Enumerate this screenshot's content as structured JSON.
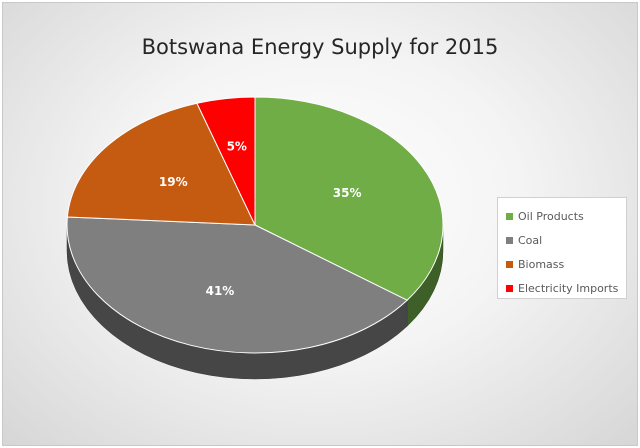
{
  "chart_data": {
    "type": "pie",
    "title": "Botswana Energy Supply for 2015",
    "categories": [
      "Oil Products",
      "Coal",
      "Biomass",
      "Electricity Imports"
    ],
    "values": [
      35,
      41,
      19,
      5
    ],
    "labels": [
      "35%",
      "41%",
      "19%",
      "5%"
    ],
    "colors": [
      "#70ad47",
      "#7f7f7f",
      "#c55a11",
      "#ff0000"
    ],
    "start_angle_deg": 0,
    "direction": "clockwise",
    "legend": "right",
    "style": "3d"
  }
}
